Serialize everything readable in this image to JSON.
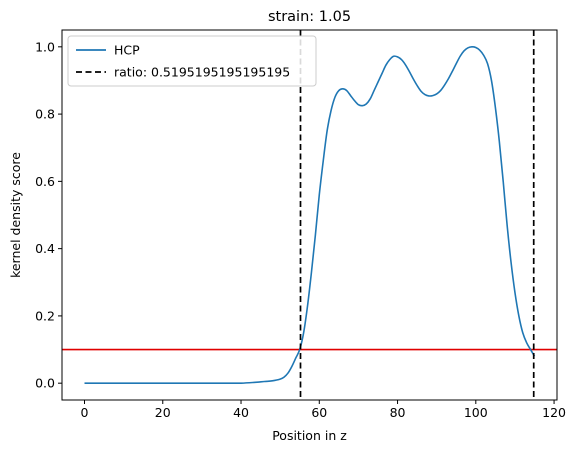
{
  "chart_data": {
    "type": "line",
    "title": "strain: 1.05",
    "xlabel": "Position in z",
    "ylabel": "kernel density score",
    "xlim": [
      -5.75,
      120.75
    ],
    "ylim": [
      -0.05,
      1.05
    ],
    "x_ticks": [
      0,
      20,
      40,
      60,
      80,
      100,
      120
    ],
    "y_ticks": [
      0.0,
      0.2,
      0.4,
      0.6,
      0.8,
      1.0
    ],
    "grid": false,
    "legend_position": "top-left",
    "series": [
      {
        "name": "HCP",
        "color": "#1f77b4",
        "style": "solid",
        "x": [
          0,
          10,
          20,
          30,
          38,
          40,
          43,
          46,
          48,
          50,
          51,
          52,
          53,
          54,
          55,
          56,
          57,
          58,
          59,
          60,
          61,
          62,
          63,
          64,
          65,
          66,
          67,
          68,
          69,
          70,
          71,
          72,
          73,
          74,
          75,
          76,
          77,
          78,
          79,
          80,
          81,
          82,
          83,
          84,
          85,
          86,
          87,
          88,
          89,
          90,
          91,
          92,
          93,
          94,
          95,
          96,
          97,
          98,
          99,
          100,
          101,
          102,
          103,
          104,
          105,
          106,
          107,
          108,
          109,
          110,
          111,
          112,
          113,
          114,
          115
        ],
        "y": [
          0.0,
          0.0,
          0.0,
          0.0,
          0.0,
          0.0,
          0.002,
          0.005,
          0.007,
          0.012,
          0.018,
          0.03,
          0.05,
          0.075,
          0.1,
          0.15,
          0.23,
          0.33,
          0.44,
          0.56,
          0.66,
          0.75,
          0.81,
          0.85,
          0.87,
          0.875,
          0.87,
          0.855,
          0.84,
          0.828,
          0.825,
          0.83,
          0.845,
          0.87,
          0.895,
          0.92,
          0.945,
          0.962,
          0.972,
          0.97,
          0.962,
          0.947,
          0.927,
          0.905,
          0.885,
          0.868,
          0.858,
          0.854,
          0.855,
          0.86,
          0.87,
          0.886,
          0.905,
          0.927,
          0.95,
          0.972,
          0.988,
          0.997,
          1.0,
          0.998,
          0.99,
          0.975,
          0.95,
          0.9,
          0.82,
          0.72,
          0.6,
          0.47,
          0.36,
          0.27,
          0.2,
          0.15,
          0.12,
          0.1,
          0.08
        ]
      }
    ],
    "vlines": [
      {
        "name": "ratio: 0.5195195195195195",
        "x": 55.2,
        "color": "#000000",
        "style": "dashed"
      },
      {
        "name": "",
        "x": 114.8,
        "color": "#000000",
        "style": "dashed"
      }
    ],
    "hlines": [
      {
        "y": 0.1,
        "color": "#e00000",
        "style": "solid"
      }
    ],
    "legend": [
      {
        "label": "HCP",
        "color": "#1f77b4",
        "style": "solid"
      },
      {
        "label": "ratio: 0.5195195195195195",
        "color": "#000000",
        "style": "dashed"
      }
    ]
  }
}
